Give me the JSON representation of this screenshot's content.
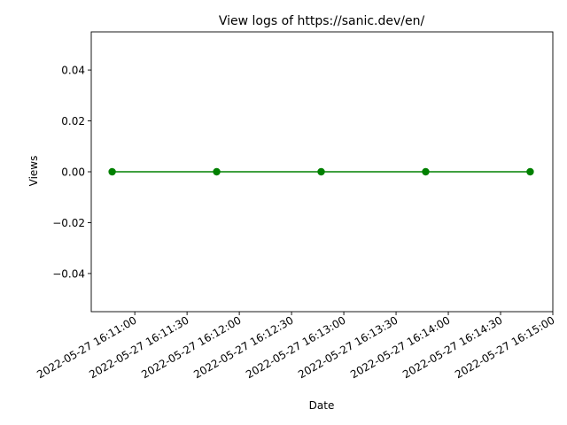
{
  "chart_data": {
    "type": "line",
    "title": "View logs of https://sanic.dev/en/",
    "xlabel": "Date",
    "ylabel": "Views",
    "x": [
      "2022-05-27 16:10:47",
      "2022-05-27 16:11:47",
      "2022-05-27 16:12:47",
      "2022-05-27 16:13:47",
      "2022-05-27 16:14:47"
    ],
    "series": [
      {
        "values": [
          0,
          0,
          0,
          0,
          0
        ],
        "color": "#008000"
      }
    ],
    "xlim": [
      "2022-05-27 16:10:35",
      "2022-05-27 16:15:00"
    ],
    "ylim": [
      -0.055,
      0.055
    ],
    "x_ticks": [
      "2022-05-27 16:11:00",
      "2022-05-27 16:11:30",
      "2022-05-27 16:12:00",
      "2022-05-27 16:12:30",
      "2022-05-27 16:13:00",
      "2022-05-27 16:13:30",
      "2022-05-27 16:14:00",
      "2022-05-27 16:14:30",
      "2022-05-27 16:15:00"
    ],
    "y_ticks": [
      -0.04,
      -0.02,
      0.0,
      0.02,
      0.04
    ],
    "y_tick_labels": [
      "−0.04",
      "−0.02",
      "0.00",
      "0.02",
      "0.04"
    ],
    "grid": false,
    "legend": "none"
  }
}
